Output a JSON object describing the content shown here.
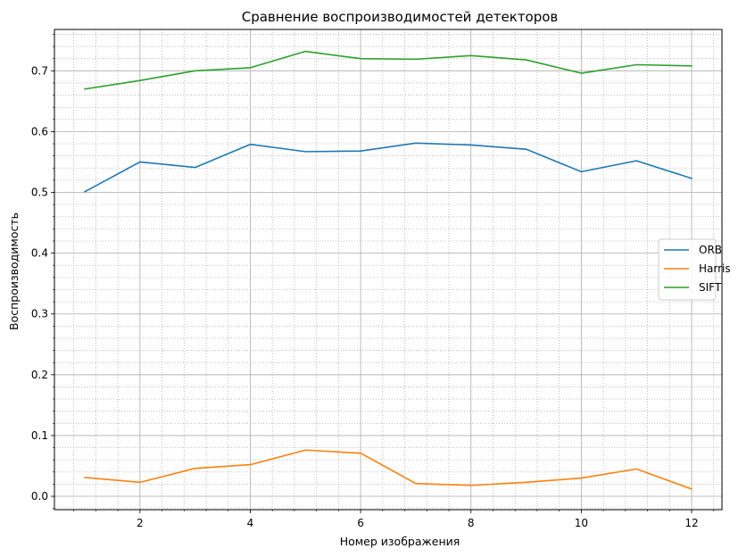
{
  "chart_data": {
    "type": "line",
    "title": "Сравнение воспроизводимостей детекторов",
    "xlabel": "Номер изображения",
    "ylabel": "Воспроизводимость",
    "x": [
      1,
      2,
      3,
      4,
      5,
      6,
      7,
      8,
      9,
      10,
      11,
      12
    ],
    "xlim": [
      0.45,
      12.55
    ],
    "ylim": [
      -0.022,
      0.768
    ],
    "x_major_ticks": [
      2,
      4,
      6,
      8,
      10,
      12
    ],
    "x_minor_step": 0.4,
    "y_major_ticks": [
      0.0,
      0.1,
      0.2,
      0.3,
      0.4,
      0.5,
      0.6,
      0.7
    ],
    "y_minor_step": 0.02,
    "grid": "major solid, minor dotted",
    "legend_position": "center-right",
    "series": [
      {
        "name": "ORB",
        "color": "#1f77b4",
        "values": [
          0.501,
          0.55,
          0.541,
          0.579,
          0.567,
          0.568,
          0.581,
          0.578,
          0.571,
          0.534,
          0.552,
          0.523
        ]
      },
      {
        "name": "Harris",
        "color": "#ff7f0e",
        "values": [
          0.031,
          0.023,
          0.046,
          0.052,
          0.076,
          0.071,
          0.021,
          0.018,
          0.023,
          0.03,
          0.045,
          0.012
        ]
      },
      {
        "name": "SIFT",
        "color": "#2ca02c",
        "values": [
          0.67,
          0.684,
          0.7,
          0.705,
          0.732,
          0.72,
          0.719,
          0.725,
          0.718,
          0.696,
          0.71,
          0.708
        ]
      }
    ]
  }
}
